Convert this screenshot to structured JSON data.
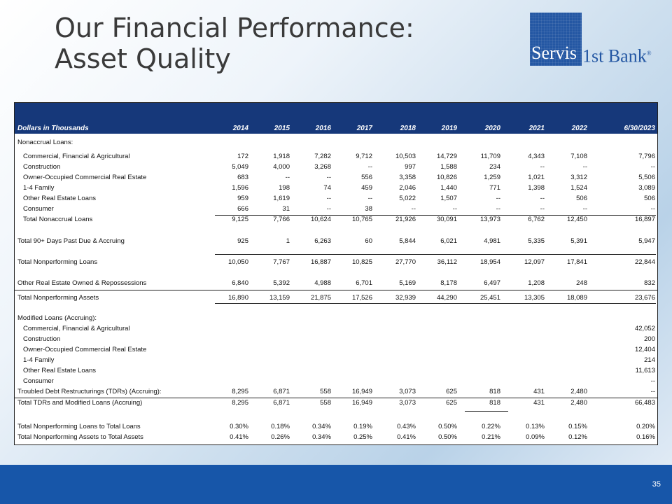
{
  "slide": {
    "title_line1": "Our Financial Performance:",
    "title_line2": "Asset Quality",
    "page_number": "35"
  },
  "logo": {
    "part1": "Servis",
    "part2": "1st Bank",
    "mark": "®"
  },
  "table": {
    "header_label": "Dollars in Thousands",
    "columns": [
      "2014",
      "2015",
      "2016",
      "2017",
      "2018",
      "2019",
      "2020",
      "2021",
      "2022",
      "6/30/2023"
    ],
    "section_nonaccrual": "Nonaccrual Loans:",
    "nonaccrual_rows": [
      {
        "label": "Commercial, Financial & Agricultural",
        "values": [
          "172",
          "1,918",
          "7,282",
          "9,712",
          "10,503",
          "14,729",
          "11,709",
          "4,343",
          "7,108",
          "7,796"
        ]
      },
      {
        "label": "Construction",
        "values": [
          "5,049",
          "4,000",
          "3,268",
          "--",
          "997",
          "1,588",
          "234",
          "--",
          "--",
          "--"
        ]
      },
      {
        "label": "Owner-Occupied Commercial Real Estate",
        "values": [
          "683",
          "--",
          "--",
          "556",
          "3,358",
          "10,826",
          "1,259",
          "1,021",
          "3,312",
          "5,506"
        ]
      },
      {
        "label": "1-4 Family",
        "values": [
          "1,596",
          "198",
          "74",
          "459",
          "2,046",
          "1,440",
          "771",
          "1,398",
          "1,524",
          "3,089"
        ]
      },
      {
        "label": "Other Real Estate Loans",
        "values": [
          "959",
          "1,619",
          "--",
          "--",
          "5,022",
          "1,507",
          "--",
          "--",
          "506",
          "506"
        ]
      },
      {
        "label": "Consumer",
        "values": [
          "666",
          "31",
          "--",
          "38",
          "--",
          "--",
          "--",
          "--",
          "--",
          "--"
        ]
      },
      {
        "label": "Total Nonaccrual Loans",
        "values": [
          "9,125",
          "7,766",
          "10,624",
          "10,765",
          "21,926",
          "30,091",
          "13,973",
          "6,762",
          "12,450",
          "16,897"
        ]
      }
    ],
    "past_due": {
      "label": "Total 90+ Days Past Due & Accruing",
      "values": [
        "925",
        "1",
        "6,263",
        "60",
        "5,844",
        "6,021",
        "4,981",
        "5,335",
        "5,391",
        "5,947"
      ]
    },
    "nonperforming_loans": {
      "label": "Total Nonperforming Loans",
      "values": [
        "10,050",
        "7,767",
        "16,887",
        "10,825",
        "27,770",
        "36,112",
        "18,954",
        "12,097",
        "17,841",
        "22,844"
      ]
    },
    "oreo": {
      "label": "Other Real Estate Owned & Repossessions",
      "values": [
        "6,840",
        "5,392",
        "4,988",
        "6,701",
        "5,169",
        "8,178",
        "6,497",
        "1,208",
        "248",
        "832"
      ]
    },
    "nonperforming_assets": {
      "label": "Total Nonperforming Assets",
      "values": [
        "16,890",
        "13,159",
        "21,875",
        "17,526",
        "32,939",
        "44,290",
        "25,451",
        "13,305",
        "18,089",
        "23,676"
      ]
    },
    "section_modified": "Modified Loans (Accruing):",
    "modified_rows": [
      {
        "label": "Commercial, Financial & Agricultural",
        "value": "42,052"
      },
      {
        "label": "Construction",
        "value": "200"
      },
      {
        "label": "Owner-Occupied Commercial Real Estate",
        "value": "12,404"
      },
      {
        "label": "1-4 Family",
        "value": "214"
      },
      {
        "label": "Other Real Estate Loans",
        "value": "11,613"
      },
      {
        "label": "Consumer",
        "value": "--"
      }
    ],
    "tdr": {
      "label": "Troubled Debt Restructurings (TDRs) (Accruing):",
      "values": [
        "8,295",
        "6,871",
        "558",
        "16,949",
        "3,073",
        "625",
        "818",
        "431",
        "2,480",
        "--"
      ]
    },
    "tdr_modified": {
      "label": "Total TDRs and Modified Loans (Accruing)",
      "values": [
        "8,295",
        "6,871",
        "558",
        "16,949",
        "3,073",
        "625",
        "818",
        "431",
        "2,480",
        "66,483"
      ]
    },
    "npl_ratio": {
      "label": "Total Nonperforming Loans to Total Loans",
      "values": [
        "0.30%",
        "0.18%",
        "0.34%",
        "0.19%",
        "0.43%",
        "0.50%",
        "0.22%",
        "0.13%",
        "0.15%",
        "0.20%"
      ]
    },
    "npa_ratio": {
      "label": "Total Nonperforming Assets to Total Assets",
      "values": [
        "0.41%",
        "0.26%",
        "0.34%",
        "0.25%",
        "0.41%",
        "0.50%",
        "0.21%",
        "0.09%",
        "0.12%",
        "0.16%"
      ]
    }
  }
}
